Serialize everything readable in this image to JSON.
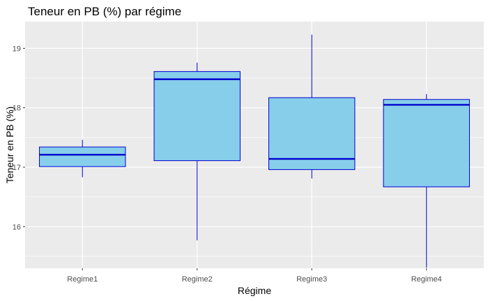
{
  "chart_data": {
    "type": "boxplot",
    "title": "Teneur en PB (%) par régime",
    "xlabel": "Régime",
    "ylabel": "Teneur en PB (%)",
    "ylim": [
      15.3,
      19.45
    ],
    "yticks": [
      16,
      17,
      18,
      19
    ],
    "grid": true,
    "categories": [
      "Regime1",
      "Regime2",
      "Regime3",
      "Regime4"
    ],
    "boxes": [
      {
        "min": 16.83,
        "q1": 17.01,
        "median": 17.21,
        "q3": 17.34,
        "max": 17.46
      },
      {
        "min": 15.77,
        "q1": 17.11,
        "median": 18.48,
        "q3": 18.61,
        "max": 18.76
      },
      {
        "min": 16.81,
        "q1": 16.96,
        "median": 17.14,
        "q3": 18.17,
        "max": 19.23
      },
      {
        "min": 15.31,
        "q1": 16.67,
        "median": 18.05,
        "q3": 18.14,
        "max": 18.23
      }
    ],
    "colors": {
      "panel": "#ebebeb",
      "grid_major": "#ffffff",
      "box_fill": "#87ceeb",
      "box_line": "#0000cd"
    }
  }
}
